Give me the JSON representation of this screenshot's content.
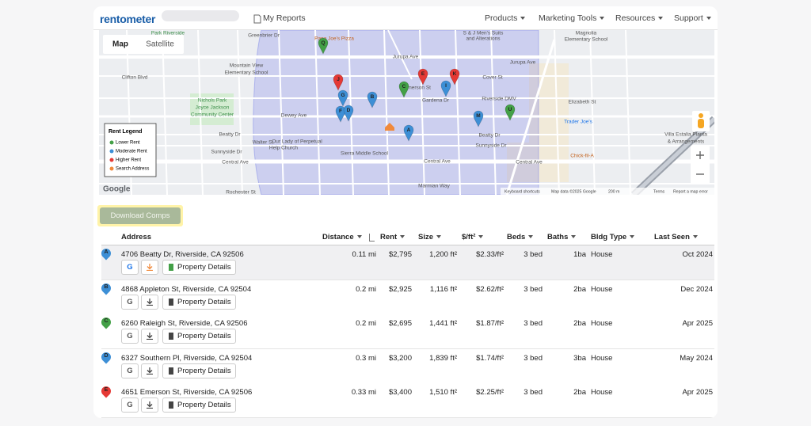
{
  "nav": {
    "logo": "rentometer",
    "my_reports": "My Reports",
    "menu": [
      "Products",
      "Marketing Tools",
      "Resources",
      "Support"
    ]
  },
  "map": {
    "tabs": [
      "Map",
      "Satellite"
    ],
    "legend": {
      "title": "Rent Legend",
      "items": [
        {
          "label": "Lower Rent",
          "color": "#43a047"
        },
        {
          "label": "Moderate Rent",
          "color": "#3d8fd6"
        },
        {
          "label": "Higher Rent",
          "color": "#e53935"
        },
        {
          "label": "Search Address",
          "color": "#f08a3c"
        }
      ]
    },
    "labels": [
      "Park Riverside",
      "Papa Joe's Pizza",
      "Greenbrier Dr",
      "Jurupa Ave",
      "Jurupa Ave",
      "Mountain View",
      "Elementary School",
      "Clifton Blvd",
      "Nichols Park",
      "Joyce Jackson",
      "Community Center",
      "Dewey Ave",
      "Beatty Dr",
      "Walter St",
      "Sunnyside Dr",
      "Central Ave",
      "Central Ave",
      "Central Ave",
      "Our Lady of Perpetual",
      "Help Church",
      "Sierra Middle School",
      "Riverside DMV",
      "Cover St",
      "Emerson St",
      "Gardena Dr",
      "Trader Joe's",
      "Chick-fil-A",
      "Magnolia",
      "Elementary School",
      "S & J Men's Suits",
      "and Alterations",
      "Elizabeth St",
      "Marmian Way",
      "Rochester St",
      "Beatty Dr",
      "Sunnyside Dr",
      "Villa Estalia Planta",
      "& Arrangements"
    ],
    "pins": [
      {
        "label": "Q",
        "color": "#43a047"
      },
      {
        "label": "J",
        "color": "#e53935"
      },
      {
        "label": "G",
        "color": "#3d8fd6"
      },
      {
        "label": "B",
        "color": "#3d8fd6"
      },
      {
        "label": "E",
        "color": "#e53935"
      },
      {
        "label": "K",
        "color": "#e53935"
      },
      {
        "label": "I",
        "color": "#3d8fd6"
      },
      {
        "label": "C",
        "color": "#43a047"
      },
      {
        "label": "F",
        "color": "#3d8fd6"
      },
      {
        "label": "D",
        "color": "#3d8fd6"
      },
      {
        "label": "A",
        "color": "#3d8fd6"
      },
      {
        "label": "M",
        "color": "#3d8fd6"
      },
      {
        "label": "U",
        "color": "#43a047"
      }
    ],
    "google": "Google",
    "attribution": [
      "Keyboard shortcuts",
      "Map data ©2025 Google",
      "200 m",
      "Terms",
      "Report a map error"
    ]
  },
  "download_button": "Download Comps",
  "table": {
    "headers": [
      "Address",
      "Distance",
      "Rent",
      "Size",
      "$/ft²",
      "Beds",
      "Baths",
      "Bldg Type",
      "Last Seen"
    ],
    "button_labels": {
      "google": "G",
      "details": "Property Details"
    },
    "rows": [
      {
        "marker": "A",
        "color": "#3d8fd6",
        "address": "4706 Beatty Dr, Riverside, CA 92506",
        "distance": "0.11 mi",
        "rent": "$2,795",
        "size": "1,200 ft²",
        "ppsf": "$2.33/ft²",
        "beds": "3 bed",
        "baths": "1ba",
        "type": "House",
        "last_seen": "Oct 2024"
      },
      {
        "marker": "B",
        "color": "#3d8fd6",
        "address": "4868 Appleton St, Riverside, CA 92504",
        "distance": "0.2 mi",
        "rent": "$2,925",
        "size": "1,116 ft²",
        "ppsf": "$2.62/ft²",
        "beds": "3 bed",
        "baths": "2ba",
        "type": "House",
        "last_seen": "Dec 2024"
      },
      {
        "marker": "C",
        "color": "#43a047",
        "address": "6260 Raleigh St, Riverside, CA 92506",
        "distance": "0.2 mi",
        "rent": "$2,695",
        "size": "1,441 ft²",
        "ppsf": "$1.87/ft²",
        "beds": "3 bed",
        "baths": "2ba",
        "type": "House",
        "last_seen": "Apr 2025"
      },
      {
        "marker": "D",
        "color": "#3d8fd6",
        "address": "6327 Southern Pl, Riverside, CA 92504",
        "distance": "0.3 mi",
        "rent": "$3,200",
        "size": "1,839 ft²",
        "ppsf": "$1.74/ft²",
        "beds": "3 bed",
        "baths": "3ba",
        "type": "House",
        "last_seen": "May 2024"
      },
      {
        "marker": "E",
        "color": "#e53935",
        "address": "4651 Emerson St, Riverside, CA 92506",
        "distance": "0.33 mi",
        "rent": "$3,400",
        "size": "1,510 ft²",
        "ppsf": "$2.25/ft²",
        "beds": "3 bed",
        "baths": "2ba",
        "type": "House",
        "last_seen": "Apr 2025"
      }
    ]
  }
}
